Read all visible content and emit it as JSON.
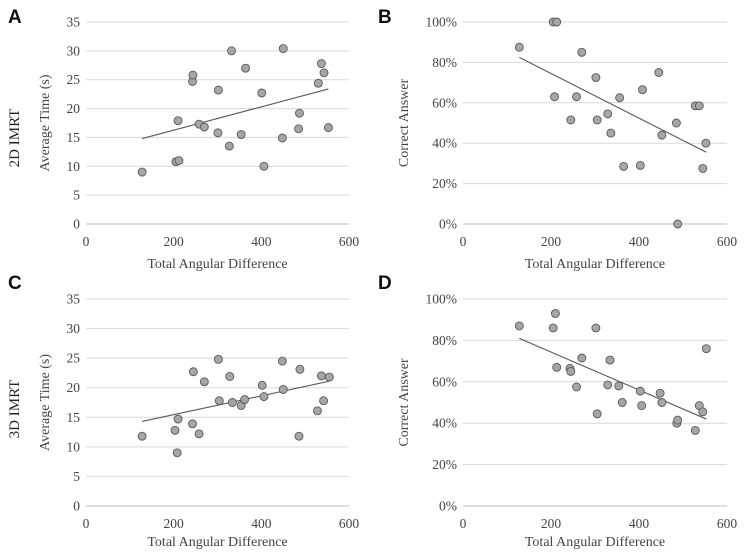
{
  "row_labels": [
    "2D IMRT",
    "3D IMRT"
  ],
  "chart_data": [
    {
      "panel": "A",
      "type": "scatter",
      "xlabel": "Total Angular Difference",
      "ylabel": "Average Time (s)",
      "xlim": [
        0,
        600
      ],
      "ylim": [
        0,
        35
      ],
      "x_ticks": [
        0,
        200,
        400,
        600
      ],
      "x_tick_labels": [
        "0",
        "200",
        "400",
        "600"
      ],
      "y_ticks": [
        0,
        5,
        10,
        15,
        20,
        25,
        30,
        35
      ],
      "y_tick_labels": [
        "0",
        "5",
        "10",
        "15",
        "20",
        "25",
        "30",
        "35"
      ],
      "grid": "horizontal",
      "x": [
        128,
        205,
        212,
        210,
        243,
        244,
        258,
        270,
        301,
        302,
        327,
        332,
        354,
        364,
        401,
        406,
        448,
        450,
        485,
        487,
        530,
        537,
        543,
        553
      ],
      "y": [
        9.0,
        10.8,
        11.0,
        17.9,
        24.7,
        25.8,
        17.3,
        16.8,
        15.8,
        23.2,
        13.5,
        30.0,
        15.5,
        27.0,
        22.7,
        10.0,
        14.9,
        30.4,
        16.5,
        19.2,
        24.4,
        27.8,
        26.2,
        16.7
      ],
      "trendline": {
        "type": "linear",
        "x": [
          128,
          553
        ],
        "y": [
          14.8,
          23.4
        ]
      }
    },
    {
      "panel": "B",
      "type": "scatter",
      "xlabel": "Total Angular Difference",
      "ylabel": "Correct Answer",
      "xlim": [
        0,
        600
      ],
      "ylim": [
        0,
        100
      ],
      "x_ticks": [
        0,
        200,
        400,
        600
      ],
      "x_tick_labels": [
        "0",
        "200",
        "400",
        "600"
      ],
      "y_ticks": [
        0,
        20,
        40,
        60,
        80,
        100
      ],
      "y_tick_labels": [
        "0%",
        "20%",
        "40%",
        "60%",
        "80%",
        "100%"
      ],
      "grid": "horizontal",
      "x": [
        128,
        205,
        213,
        208,
        245,
        258,
        270,
        302,
        305,
        329,
        336,
        356,
        365,
        403,
        408,
        445,
        452,
        485,
        488,
        528,
        537,
        545,
        552
      ],
      "y": [
        87.5,
        100,
        100,
        63,
        51.5,
        63,
        85,
        72.5,
        51.5,
        54.5,
        45,
        62.5,
        28.5,
        29,
        66.5,
        75,
        44,
        50,
        0,
        58.5,
        58.5,
        27.5,
        40
      ],
      "trendline": {
        "type": "linear",
        "x": [
          128,
          553
        ],
        "y": [
          82.5,
          35.5
        ]
      }
    },
    {
      "panel": "C",
      "type": "scatter",
      "xlabel": "Total Angular Difference",
      "ylabel": "Average Time (s)",
      "xlim": [
        0,
        600
      ],
      "ylim": [
        0,
        35
      ],
      "x_ticks": [
        0,
        200,
        400,
        600
      ],
      "x_tick_labels": [
        "0",
        "200",
        "400",
        "600"
      ],
      "y_ticks": [
        0,
        5,
        10,
        15,
        20,
        25,
        30,
        35
      ],
      "y_tick_labels": [
        "0",
        "5",
        "10",
        "15",
        "20",
        "25",
        "30",
        "35"
      ],
      "grid": "horizontal",
      "x": [
        128,
        203,
        208,
        210,
        243,
        245,
        258,
        270,
        302,
        304,
        328,
        334,
        354,
        362,
        402,
        406,
        448,
        450,
        486,
        488,
        528,
        537,
        542,
        555
      ],
      "y": [
        11.8,
        12.8,
        9.0,
        14.7,
        13.9,
        22.7,
        12.2,
        21.0,
        24.8,
        17.8,
        21.9,
        17.5,
        17.0,
        18.0,
        20.4,
        18.5,
        24.5,
        19.7,
        11.8,
        23.1,
        16.1,
        22.0,
        17.8,
        21.8
      ],
      "trendline": {
        "type": "linear",
        "x": [
          128,
          555
        ],
        "y": [
          14.3,
          21.1
        ]
      }
    },
    {
      "panel": "D",
      "type": "scatter",
      "xlabel": "Total Angular Difference",
      "ylabel": "Correct Answer",
      "xlim": [
        0,
        600
      ],
      "ylim": [
        0,
        100
      ],
      "x_ticks": [
        0,
        200,
        400,
        600
      ],
      "x_tick_labels": [
        "0",
        "200",
        "400",
        "600"
      ],
      "y_ticks": [
        0,
        20,
        40,
        60,
        80,
        100
      ],
      "y_tick_labels": [
        "0%",
        "20%",
        "40%",
        "60%",
        "80%",
        "100%"
      ],
      "grid": "horizontal",
      "x": [
        128,
        205,
        210,
        213,
        243,
        245,
        258,
        270,
        302,
        305,
        329,
        334,
        354,
        362,
        403,
        406,
        448,
        452,
        486,
        488,
        528,
        537,
        545,
        553
      ],
      "y": [
        87,
        86,
        93,
        67,
        66.5,
        65,
        57.5,
        71.5,
        86,
        44.5,
        58.5,
        70.5,
        58,
        50,
        55.5,
        48.5,
        54.5,
        50,
        40,
        41.5,
        36.5,
        48.5,
        45.5,
        76
      ],
      "trendline": {
        "type": "linear",
        "x": [
          128,
          553
        ],
        "y": [
          81,
          42
        ]
      }
    }
  ]
}
